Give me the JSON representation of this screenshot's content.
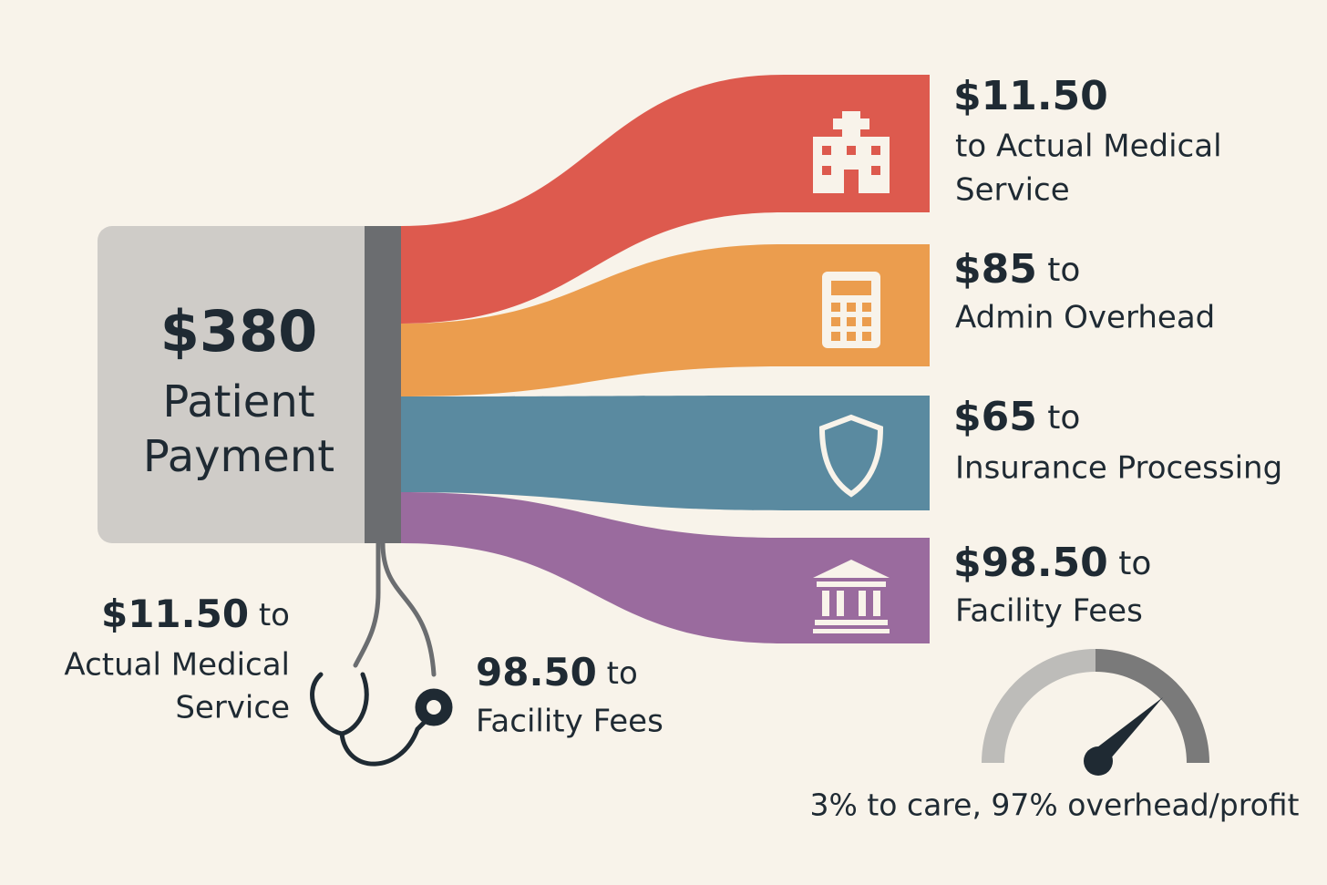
{
  "source": {
    "amount": "$380",
    "label_lines": [
      "Patient",
      "Payment"
    ]
  },
  "flows": [
    {
      "amount": "$11.50",
      "lines": [
        "to Actual Medical",
        "Service"
      ]
    },
    {
      "amount": "$85",
      "suffix": "to",
      "lines": [
        "Admin Overhead"
      ]
    },
    {
      "amount": "$65",
      "suffix": "to",
      "lines": [
        "Insurance Processing"
      ]
    },
    {
      "amount": "$98.50",
      "suffix": "to",
      "lines": [
        "Facility Fees"
      ]
    }
  ],
  "callouts": [
    {
      "amount": "$11.50",
      "suffix": "to",
      "lines": [
        "Actual Medical",
        "Service"
      ]
    },
    {
      "amount": "98.50",
      "suffix": "to",
      "lines": [
        "Facility Fees"
      ]
    }
  ],
  "gauge": {
    "caption": "3% to care, 97% overhead/profit"
  }
}
